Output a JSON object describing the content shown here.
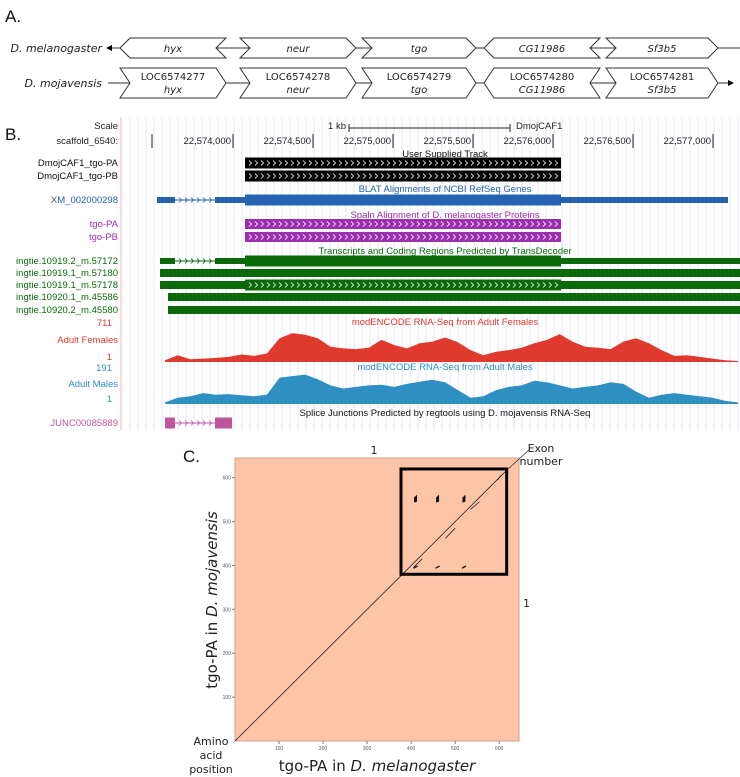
{
  "panelA": {
    "label": "A.",
    "rows": [
      {
        "species": "D. melanogaster",
        "genes": [
          {
            "name": "hyx",
            "dir": "left"
          },
          {
            "name": "neur",
            "dir": "right"
          },
          {
            "name": "tgo",
            "dir": "right"
          },
          {
            "name": "CG11986",
            "dir": "left"
          },
          {
            "name": "Sf3b5",
            "dir": "right"
          }
        ]
      },
      {
        "species": "D. mojavensis",
        "genes": [
          {
            "id": "LOC6574277",
            "name": "hyx",
            "dir": "right"
          },
          {
            "id": "LOC6574278",
            "name": "neur",
            "dir": "right"
          },
          {
            "id": "LOC6574279",
            "name": "tgo",
            "dir": "right"
          },
          {
            "id": "LOC6574280",
            "name": "CG11986",
            "dir": "left"
          },
          {
            "id": "LOC6574281",
            "name": "Sf3b5",
            "dir": "right"
          }
        ]
      }
    ]
  },
  "panelB": {
    "label": "B.",
    "scale_label": "Scale",
    "scale_bar": "1 kb",
    "assembly": "DmojCAF1",
    "chrom_label": "scaffold_6540:",
    "positions": [
      "22,574,000",
      "22,574,500",
      "22,575,000",
      "22,575,500",
      "22,576,000",
      "22,576,500",
      "22,577,000"
    ],
    "tracks": {
      "user": {
        "title": "User Supplied Track",
        "items": [
          "DmojCAF1_tgo-PA",
          "DmojCAF1_tgo-PB"
        ]
      },
      "blat": {
        "title": "BLAT Alignments of NCBI RefSeq Genes",
        "items": [
          "XM_002000298"
        ]
      },
      "spaln": {
        "title": "Spaln Alignment of D. melanogaster Proteins",
        "items": [
          "tgo-PA",
          "tgo-PB"
        ]
      },
      "transdecoder": {
        "title": "Transcripts and Coding Regions Predicted by TransDecoder",
        "items": [
          "ingtie.10919.2_m.57172",
          "ingtie.10919.1_m.57180",
          "ingtie.10919.1_m.57178",
          "ingtie.10920.1_m.45586",
          "ingtie.10920.2_m.45580"
        ]
      },
      "females": {
        "title": "modENCODE RNA-Seq from Adult Females",
        "name": "Adult Females",
        "max": "711",
        "min": "1",
        "color": "#e03a2e",
        "coverage": [
          0.05,
          0.2,
          0.08,
          0.1,
          0.12,
          0.15,
          0.22,
          0.18,
          0.25,
          0.7,
          0.85,
          0.8,
          0.7,
          0.45,
          0.4,
          0.38,
          0.42,
          0.65,
          0.5,
          0.4,
          0.55,
          0.6,
          0.72,
          0.58,
          0.35,
          0.2,
          0.3,
          0.35,
          0.42,
          0.55,
          0.65,
          0.82,
          0.6,
          0.45,
          0.42,
          0.38,
          0.6,
          0.7,
          0.55,
          0.35,
          0.18,
          0.2,
          0.15,
          0.1,
          0.05,
          0.03
        ]
      },
      "males": {
        "title": "modENCODE RNA-Seq from Adult Males",
        "name": "Adult Males",
        "max": "191",
        "min": "1",
        "color": "#2e8fc2",
        "coverage": [
          0.05,
          0.2,
          0.25,
          0.35,
          0.3,
          0.32,
          0.28,
          0.25,
          0.3,
          0.85,
          0.9,
          0.95,
          0.8,
          0.6,
          0.5,
          0.55,
          0.6,
          0.62,
          0.55,
          0.65,
          0.72,
          0.78,
          0.7,
          0.45,
          0.2,
          0.25,
          0.45,
          0.55,
          0.6,
          0.75,
          0.7,
          0.6,
          0.5,
          0.55,
          0.6,
          0.7,
          0.65,
          0.4,
          0.2,
          0.3,
          0.35,
          0.3,
          0.25,
          0.2,
          0.1,
          0.05
        ]
      },
      "splice": {
        "title": "Splice Junctions Predicted by regtools using D. mojavensis RNA-Seq",
        "items": [
          "JUNC00085889"
        ]
      }
    },
    "colors": {
      "user": "#000000",
      "blat": "#2563ae",
      "spaln": "#9b2fae",
      "transdecoder": "#0a6a0a",
      "splice": "#c0569c"
    }
  },
  "panelC": {
    "label": "C.",
    "chart_data": {
      "type": "scatter",
      "subtype": "dot plot",
      "xlabel_prefix": "tgo-PA in ",
      "xlabel_species": "D. melanogaster",
      "ylabel_prefix": "tgo-PA in ",
      "ylabel_species": "D. mojavensis",
      "xlim": [
        0,
        645
      ],
      "ylim": [
        0,
        645
      ],
      "xticks": [
        100,
        200,
        300,
        400,
        500,
        600
      ],
      "yticks": [
        100,
        200,
        300,
        400,
        500,
        600
      ],
      "background": "#fec4a8",
      "diagonal": [
        [
          0,
          0
        ],
        [
          620,
          620
        ]
      ],
      "highlight_box": {
        "x": [
          377,
          617
        ],
        "y": [
          380,
          620
        ]
      },
      "segments": [
        [
          [
            405,
            395
          ],
          [
            425,
            415
          ]
        ],
        [
          [
            478,
            462
          ],
          [
            500,
            485
          ]
        ],
        [
          [
            535,
            528
          ],
          [
            555,
            545
          ]
        ],
        [
          [
            597,
            595
          ],
          [
            603,
            605
          ]
        ]
      ],
      "blobs": [
        [
          410,
          550
        ],
        [
          460,
          550
        ],
        [
          520,
          550
        ],
        [
          410,
          398
        ],
        [
          460,
          398
        ],
        [
          520,
          398
        ]
      ],
      "annotations": {
        "exon_top": "1",
        "exon_right": "1",
        "exon_number": [
          "Exon",
          "number"
        ],
        "amino_acid": [
          "Amino",
          "acid",
          "position"
        ]
      }
    }
  }
}
